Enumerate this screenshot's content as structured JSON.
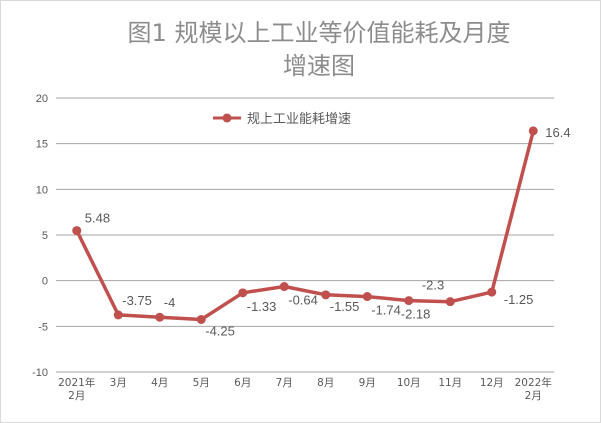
{
  "chart_data": {
    "type": "line",
    "title_line1": "图1      规模以上工业等价值能耗及月度",
    "title_line2": "增速图",
    "categories": [
      [
        "2021年",
        "2月"
      ],
      [
        "3月"
      ],
      [
        "4月"
      ],
      [
        "5月"
      ],
      [
        "6月"
      ],
      [
        "7月"
      ],
      [
        "8月"
      ],
      [
        "9月"
      ],
      [
        "10月"
      ],
      [
        "11月"
      ],
      [
        "12月"
      ],
      [
        "2022年",
        "2月"
      ]
    ],
    "series": [
      {
        "name": "规上工业能耗增速",
        "values": [
          5.48,
          -3.75,
          -4,
          -4.25,
          -1.33,
          -0.64,
          -1.55,
          -1.74,
          -2.18,
          -2.3,
          -1.25,
          16.4
        ],
        "labels": [
          "5.48",
          "-3.75",
          "-4",
          "-4.25",
          "-1.33",
          "-0.64",
          "-1.55",
          "-1.74",
          "-2.18",
          "-2.3",
          "-1.25",
          "16.4"
        ]
      }
    ],
    "ylim": [
      -10,
      20
    ],
    "yticks": [
      -10,
      -5,
      0,
      5,
      10,
      15,
      20
    ],
    "grid": true,
    "legend": "top-center",
    "colors": {
      "series": "#c0504d",
      "grid": "#a6a6a6",
      "text": "#595959",
      "title": "#8c8c8c"
    }
  }
}
